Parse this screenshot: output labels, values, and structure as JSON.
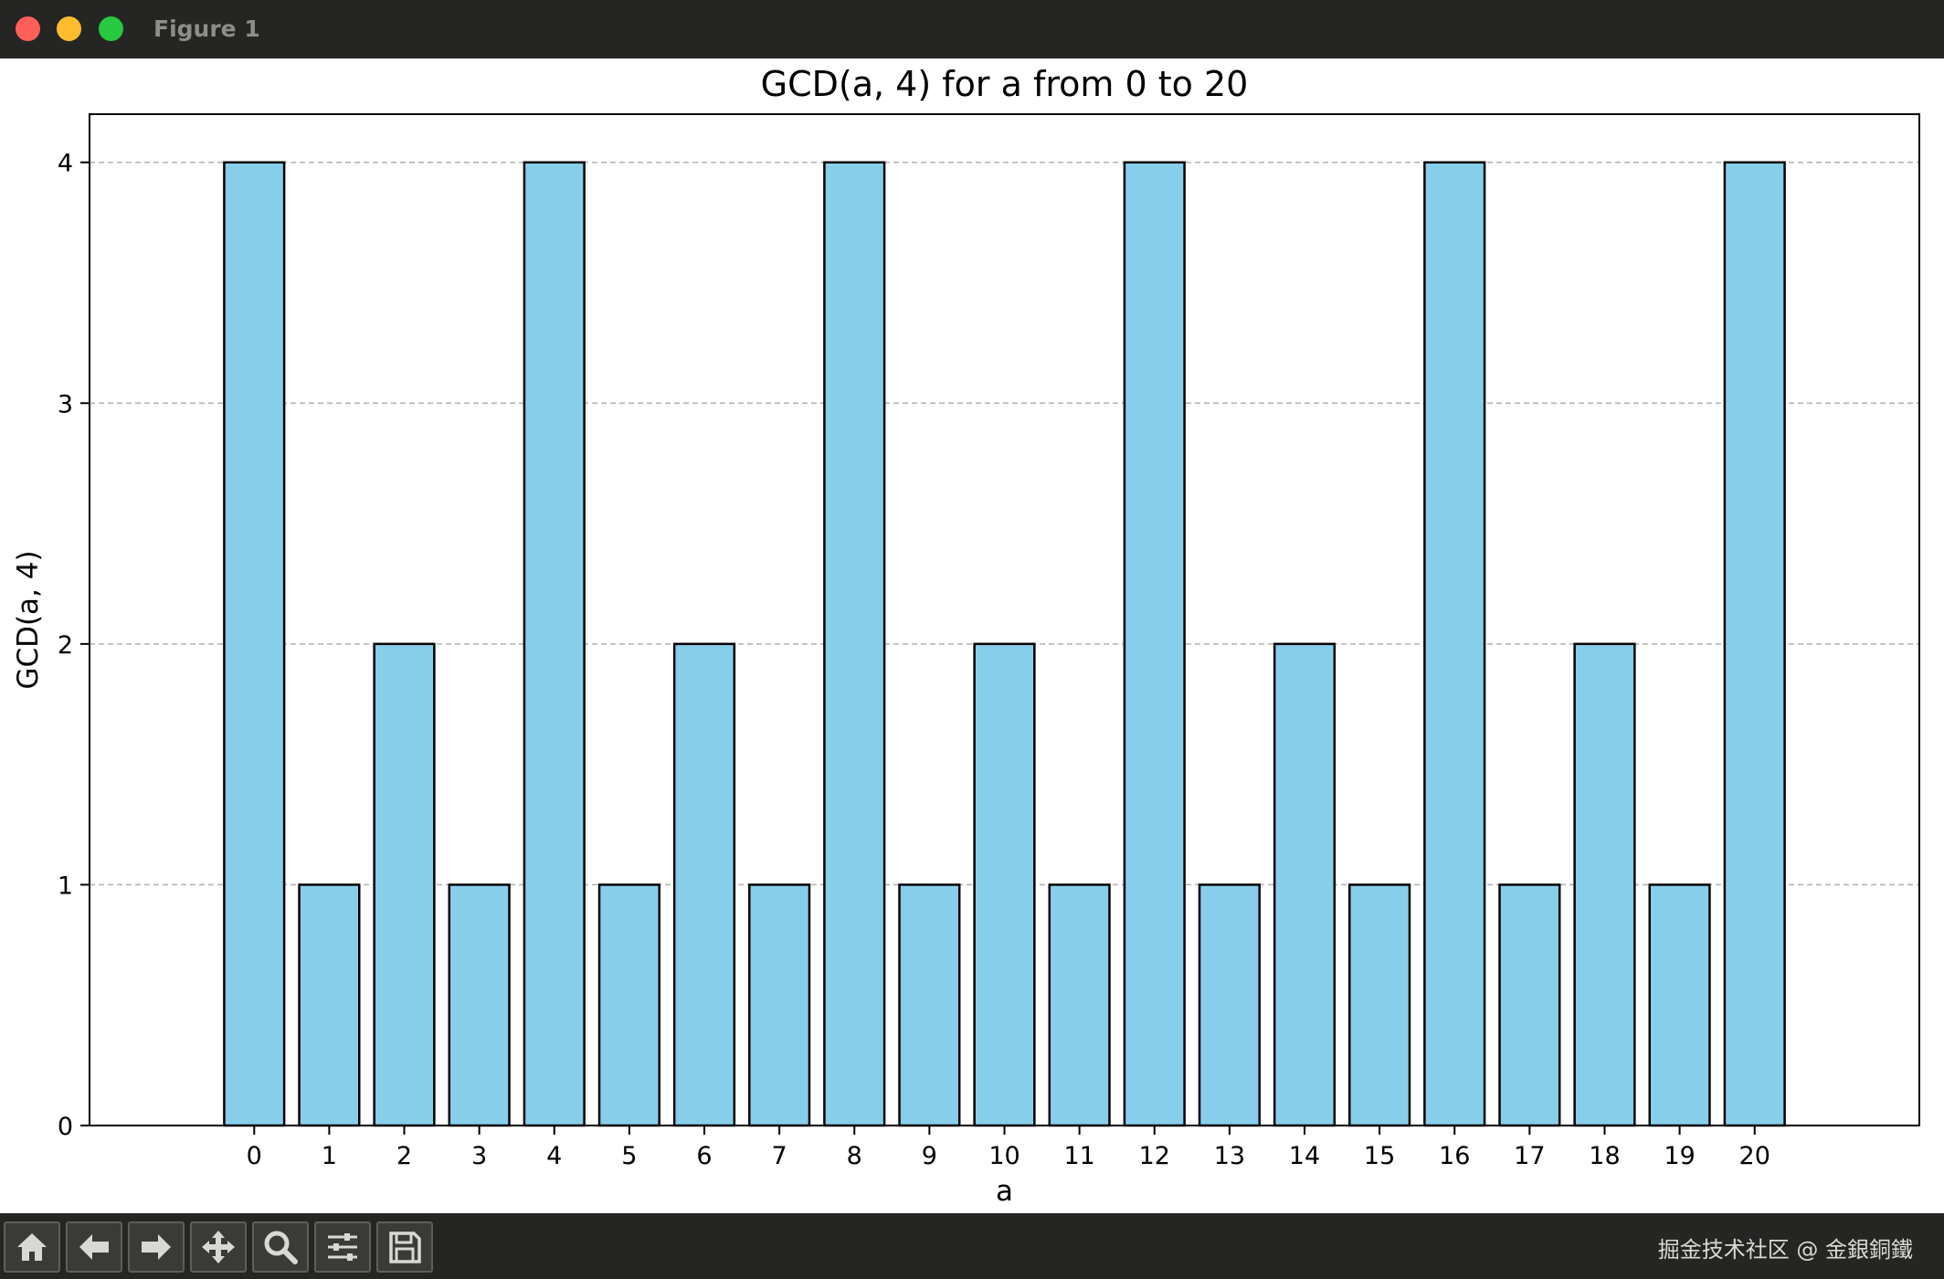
{
  "window": {
    "title": "Figure 1",
    "colors": {
      "close": "#ff5f57",
      "minimize": "#febc2e",
      "maximize": "#28c840"
    }
  },
  "toolbar": {
    "buttons": [
      {
        "name": "home-icon"
      },
      {
        "name": "back-arrow-icon"
      },
      {
        "name": "forward-arrow-icon"
      },
      {
        "name": "pan-icon"
      },
      {
        "name": "zoom-icon"
      },
      {
        "name": "configure-subplots-icon"
      },
      {
        "name": "save-icon"
      }
    ],
    "watermark": "掘金技术社区 @ 金銀銅鐵"
  },
  "chart_data": {
    "type": "bar",
    "title": "GCD(a, 4) for a from 0 to 20",
    "xlabel": "a",
    "ylabel": "GCD(a, 4)",
    "categories": [
      "0",
      "1",
      "2",
      "3",
      "4",
      "5",
      "6",
      "7",
      "8",
      "9",
      "10",
      "11",
      "12",
      "13",
      "14",
      "15",
      "16",
      "17",
      "18",
      "19",
      "20"
    ],
    "values": [
      4,
      1,
      2,
      1,
      4,
      1,
      2,
      1,
      4,
      1,
      2,
      1,
      4,
      1,
      2,
      1,
      4,
      1,
      2,
      1,
      4
    ],
    "ylim": [
      0,
      4.2
    ],
    "yticks": [
      "0",
      "1",
      "2",
      "3",
      "4"
    ],
    "grid": "y dashed",
    "bar_color": "#87ceeb",
    "edge_color": "#000000"
  }
}
